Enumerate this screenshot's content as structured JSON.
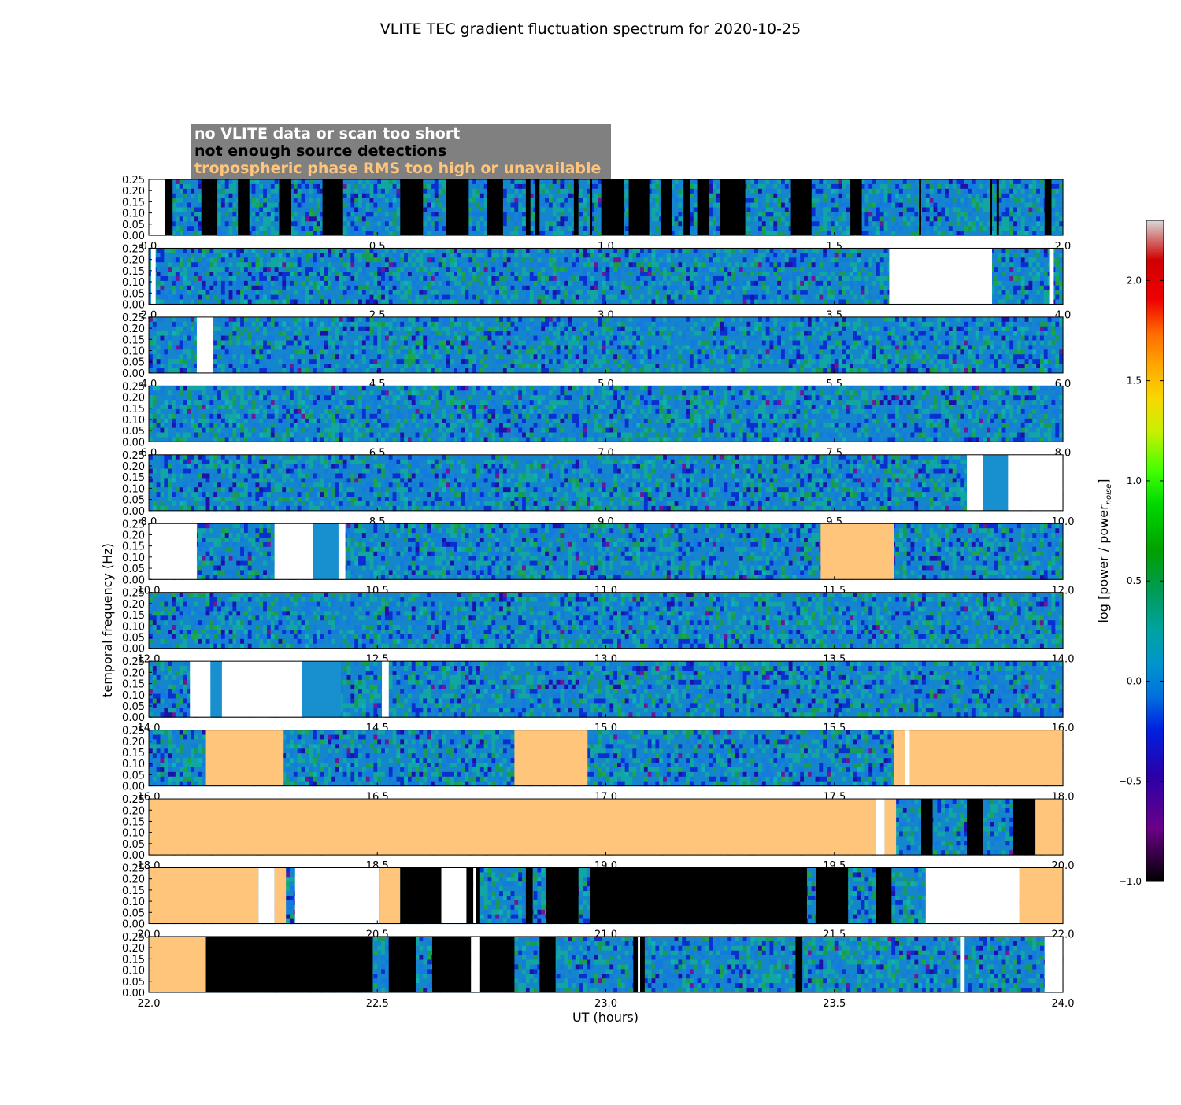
{
  "chart_data": {
    "type": "heatmap",
    "title": "VLITE TEC gradient fluctuation spectrum for 2020-10-25",
    "xlabel": "UT (hours)",
    "ylabel": "temporal frequency (Hz)",
    "colorbar_label": "log [power / power",
    "colorbar_label_subscript": "noise",
    "colorbar_label_close": "]",
    "colorbar_range": [
      -1.0,
      2.3
    ],
    "colorbar_ticks": [
      "2.0",
      "1.5",
      "1.0",
      "0.5",
      "0.0",
      "−0.5",
      "−1.0"
    ],
    "colorbar_tick_values": [
      2.0,
      1.5,
      1.0,
      0.5,
      0.0,
      -0.5,
      -1.0
    ],
    "ylim": [
      0,
      0.25
    ],
    "ytick_labels": [
      "0.25",
      "0.20",
      "0.15",
      "0.10",
      "0.05",
      "0.00"
    ],
    "ytick_values": [
      0.25,
      0.2,
      0.15,
      0.1,
      0.05,
      0.0
    ],
    "legend": {
      "placement": "top-left",
      "items": [
        {
          "label": "no VLITE data or scan too short",
          "status": "nodata",
          "color": "#ffffff"
        },
        {
          "label": "not enough source detections",
          "status": "nodet",
          "color": "#000000"
        },
        {
          "label": "tropospheric phase RMS too high or unavailable",
          "status": "trop",
          "color": "#ffc57a"
        }
      ],
      "box_color": "#808080"
    },
    "status_colors": {
      "nodata": "#ffffff",
      "nodet": "#000000",
      "trop": "#ffc57a"
    },
    "panels": [
      {
        "xlim": [
          0.0,
          2.0
        ],
        "xticks": [
          "0.0",
          "0.5",
          "1.0",
          "1.5",
          "2.0"
        ],
        "segments": [
          {
            "type": "nodata",
            "start": 0.0,
            "end": 0.035
          },
          {
            "type": "nodet",
            "start": 0.035,
            "end": 0.052
          },
          {
            "type": "nodet",
            "start": 0.115,
            "end": 0.15
          },
          {
            "type": "nodet",
            "start": 0.195,
            "end": 0.22
          },
          {
            "type": "nodet",
            "start": 0.285,
            "end": 0.31
          },
          {
            "type": "nodet",
            "start": 0.38,
            "end": 0.425
          },
          {
            "type": "nodet",
            "start": 0.55,
            "end": 0.6
          },
          {
            "type": "nodet",
            "start": 0.65,
            "end": 0.7
          },
          {
            "type": "nodet",
            "start": 0.74,
            "end": 0.775
          },
          {
            "type": "nodet",
            "start": 0.825,
            "end": 0.835
          },
          {
            "type": "nodet",
            "start": 0.845,
            "end": 0.855
          },
          {
            "type": "nodet",
            "start": 0.93,
            "end": 0.94
          },
          {
            "type": "nodet",
            "start": 0.965,
            "end": 0.97
          },
          {
            "type": "nodet",
            "start": 0.99,
            "end": 1.04
          },
          {
            "type": "nodet",
            "start": 1.05,
            "end": 1.095
          },
          {
            "type": "nodet",
            "start": 1.12,
            "end": 1.145
          },
          {
            "type": "nodet",
            "start": 1.17,
            "end": 1.185
          },
          {
            "type": "nodet",
            "start": 1.2,
            "end": 1.225
          },
          {
            "type": "nodet",
            "start": 1.25,
            "end": 1.305
          },
          {
            "type": "nodet",
            "start": 1.405,
            "end": 1.45
          },
          {
            "type": "nodet",
            "start": 1.535,
            "end": 1.56
          },
          {
            "type": "nodet",
            "start": 1.685,
            "end": 1.69
          },
          {
            "type": "nodet",
            "start": 1.84,
            "end": 1.845
          },
          {
            "type": "nodet",
            "start": 1.855,
            "end": 1.86
          },
          {
            "type": "nodet",
            "start": 1.96,
            "end": 1.975
          }
        ]
      },
      {
        "xlim": [
          2.0,
          4.0
        ],
        "xticks": [
          "2.0",
          "2.5",
          "3.0",
          "3.5",
          "4.0"
        ],
        "segments": [
          {
            "type": "nodata",
            "start": 2.005,
            "end": 2.015
          },
          {
            "type": "nodata",
            "start": 3.62,
            "end": 3.845
          },
          {
            "type": "nodata",
            "start": 3.97,
            "end": 3.98
          }
        ]
      },
      {
        "xlim": [
          4.0,
          6.0
        ],
        "xticks": [
          "4.0",
          "4.5",
          "5.0",
          "5.5",
          "6.0"
        ],
        "segments": [
          {
            "type": "nodata",
            "start": 4.105,
            "end": 4.14
          }
        ]
      },
      {
        "xlim": [
          6.0,
          8.0
        ],
        "xticks": [
          "6.0",
          "6.5",
          "7.0",
          "7.5",
          "8.0"
        ],
        "segments": []
      },
      {
        "xlim": [
          8.0,
          10.0
        ],
        "xticks": [
          "8.0",
          "8.5",
          "9.0",
          "9.5",
          "10.0"
        ],
        "segments": [
          {
            "type": "nodata",
            "start": 9.79,
            "end": 9.825
          },
          {
            "type": "flat",
            "start": 9.825,
            "end": 9.88
          },
          {
            "type": "nodata",
            "start": 9.88,
            "end": 10.0
          }
        ]
      },
      {
        "xlim": [
          10.0,
          12.0
        ],
        "xticks": [
          "10.0",
          "10.5",
          "11.0",
          "11.5",
          "12.0"
        ],
        "segments": [
          {
            "type": "nodata",
            "start": 10.0,
            "end": 10.105
          },
          {
            "type": "nodata",
            "start": 10.275,
            "end": 10.36
          },
          {
            "type": "flat",
            "start": 10.36,
            "end": 10.415
          },
          {
            "type": "nodata",
            "start": 10.415,
            "end": 10.43
          },
          {
            "type": "trop",
            "start": 11.47,
            "end": 11.63
          }
        ]
      },
      {
        "xlim": [
          12.0,
          14.0
        ],
        "xticks": [
          "12.0",
          "12.5",
          "13.0",
          "13.5",
          "14.0"
        ],
        "segments": []
      },
      {
        "xlim": [
          14.0,
          16.0
        ],
        "xticks": [
          "14.0",
          "14.5",
          "15.0",
          "15.5",
          "16.0"
        ],
        "segments": [
          {
            "type": "nodata",
            "start": 14.09,
            "end": 14.135
          },
          {
            "type": "flat",
            "start": 14.135,
            "end": 14.16
          },
          {
            "type": "nodata",
            "start": 14.16,
            "end": 14.335
          },
          {
            "type": "flat",
            "start": 14.335,
            "end": 14.42
          },
          {
            "type": "nodata",
            "start": 14.51,
            "end": 14.525
          }
        ]
      },
      {
        "xlim": [
          16.0,
          18.0
        ],
        "xticks": [
          "16.0",
          "16.5",
          "17.0",
          "17.5",
          "18.0"
        ],
        "segments": [
          {
            "type": "trop",
            "start": 16.125,
            "end": 16.295
          },
          {
            "type": "trop",
            "start": 16.8,
            "end": 16.96
          },
          {
            "type": "trop",
            "start": 17.63,
            "end": 17.655
          },
          {
            "type": "nodata",
            "start": 17.655,
            "end": 17.665
          },
          {
            "type": "trop",
            "start": 17.665,
            "end": 18.0
          }
        ]
      },
      {
        "xlim": [
          18.0,
          20.0
        ],
        "xticks": [
          "18.0",
          "18.5",
          "19.0",
          "19.5",
          "20.0"
        ],
        "segments": [
          {
            "type": "trop",
            "start": 18.0,
            "end": 19.59
          },
          {
            "type": "nodata",
            "start": 19.59,
            "end": 19.61
          },
          {
            "type": "trop",
            "start": 19.61,
            "end": 19.635
          },
          {
            "type": "nodet",
            "start": 19.69,
            "end": 19.715
          },
          {
            "type": "nodet",
            "start": 19.79,
            "end": 19.825
          },
          {
            "type": "nodet",
            "start": 19.89,
            "end": 19.94
          },
          {
            "type": "trop",
            "start": 19.94,
            "end": 20.0
          }
        ]
      },
      {
        "xlim": [
          20.0,
          22.0
        ],
        "xticks": [
          "20.0",
          "20.5",
          "21.0",
          "21.5",
          "22.0"
        ],
        "segments": [
          {
            "type": "trop",
            "start": 20.0,
            "end": 20.24
          },
          {
            "type": "nodata",
            "start": 20.24,
            "end": 20.275
          },
          {
            "type": "trop",
            "start": 20.275,
            "end": 20.3
          },
          {
            "type": "nodata",
            "start": 20.32,
            "end": 20.505
          },
          {
            "type": "trop",
            "start": 20.505,
            "end": 20.55
          },
          {
            "type": "nodet",
            "start": 20.55,
            "end": 20.64
          },
          {
            "type": "nodata",
            "start": 20.64,
            "end": 20.695
          },
          {
            "type": "nodet",
            "start": 20.695,
            "end": 20.71
          },
          {
            "type": "nodata",
            "start": 20.71,
            "end": 20.715
          },
          {
            "type": "nodet",
            "start": 20.715,
            "end": 20.725
          },
          {
            "type": "nodet",
            "start": 20.825,
            "end": 20.84
          },
          {
            "type": "nodet",
            "start": 20.87,
            "end": 20.94
          },
          {
            "type": "nodet",
            "start": 20.965,
            "end": 21.44
          },
          {
            "type": "nodet",
            "start": 21.46,
            "end": 21.53
          },
          {
            "type": "nodet",
            "start": 21.59,
            "end": 21.625
          },
          {
            "type": "nodata",
            "start": 21.7,
            "end": 21.905
          },
          {
            "type": "trop",
            "start": 21.905,
            "end": 22.0
          }
        ]
      },
      {
        "xlim": [
          22.0,
          24.0
        ],
        "xticks": [
          "22.0",
          "22.5",
          "23.0",
          "23.5",
          "24.0"
        ],
        "segments": [
          {
            "type": "trop",
            "start": 22.0,
            "end": 22.125
          },
          {
            "type": "nodet",
            "start": 22.125,
            "end": 22.49
          },
          {
            "type": "nodet",
            "start": 22.525,
            "end": 22.585
          },
          {
            "type": "nodet",
            "start": 22.62,
            "end": 22.705
          },
          {
            "type": "nodata",
            "start": 22.705,
            "end": 22.725
          },
          {
            "type": "nodet",
            "start": 22.725,
            "end": 22.8
          },
          {
            "type": "nodet",
            "start": 22.855,
            "end": 22.89
          },
          {
            "type": "nodet",
            "start": 23.06,
            "end": 23.07
          },
          {
            "type": "nodata",
            "start": 23.07,
            "end": 23.075
          },
          {
            "type": "nodet",
            "start": 23.075,
            "end": 23.085
          },
          {
            "type": "nodet",
            "start": 23.415,
            "end": 23.43
          },
          {
            "type": "nodata",
            "start": 23.775,
            "end": 23.785
          },
          {
            "type": "nodata",
            "start": 23.96,
            "end": 24.0
          }
        ]
      }
    ]
  }
}
